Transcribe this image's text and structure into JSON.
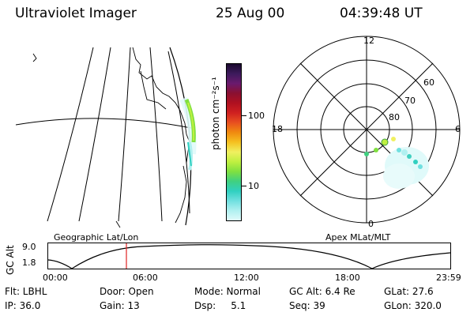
{
  "header": {
    "title": "Ultraviolet Imager",
    "date": "25 Aug 00",
    "time": "04:39:48 UT"
  },
  "colorbar": {
    "unit_label": "photon cm⁻²s⁻¹",
    "ticks": [
      "100",
      "10"
    ],
    "colors": [
      "#1a0a2e",
      "#3d1a5c",
      "#6a1a6e",
      "#8b1030",
      "#b01020",
      "#d02020",
      "#e85020",
      "#f08a10",
      "#f5c020",
      "#f0f060",
      "#c0f040",
      "#80e040",
      "#40d080",
      "#30d0c0",
      "#70e0e0",
      "#b0f0f0",
      "#e0fafa"
    ]
  },
  "geo_panel": {
    "label": "Geographic Lat/Lon"
  },
  "polar_panel": {
    "label": "Apex MLat/MLT",
    "mlt_labels": [
      "12",
      "18",
      "6",
      "0"
    ],
    "lat_labels": [
      "60",
      "70",
      "80"
    ]
  },
  "timeline": {
    "ylabel": "GC Alt",
    "yticks": [
      "9.0",
      "1.8"
    ],
    "xticks": [
      "00:00",
      "06:00",
      "12:00",
      "18:00",
      "23:59"
    ]
  },
  "status": {
    "flt": "Flt: LBHL",
    "door": "Door: Open",
    "mode": "Mode: Normal",
    "gcalt": "GC Alt: 6.4 Re",
    "glat": "GLat:  27.6",
    "ip": "IP: 36.0",
    "gain": "Gain: 13",
    "dsp": "Dsp:     5.1",
    "seq": "Seq: 39",
    "glon": "GLon: 320.0"
  }
}
